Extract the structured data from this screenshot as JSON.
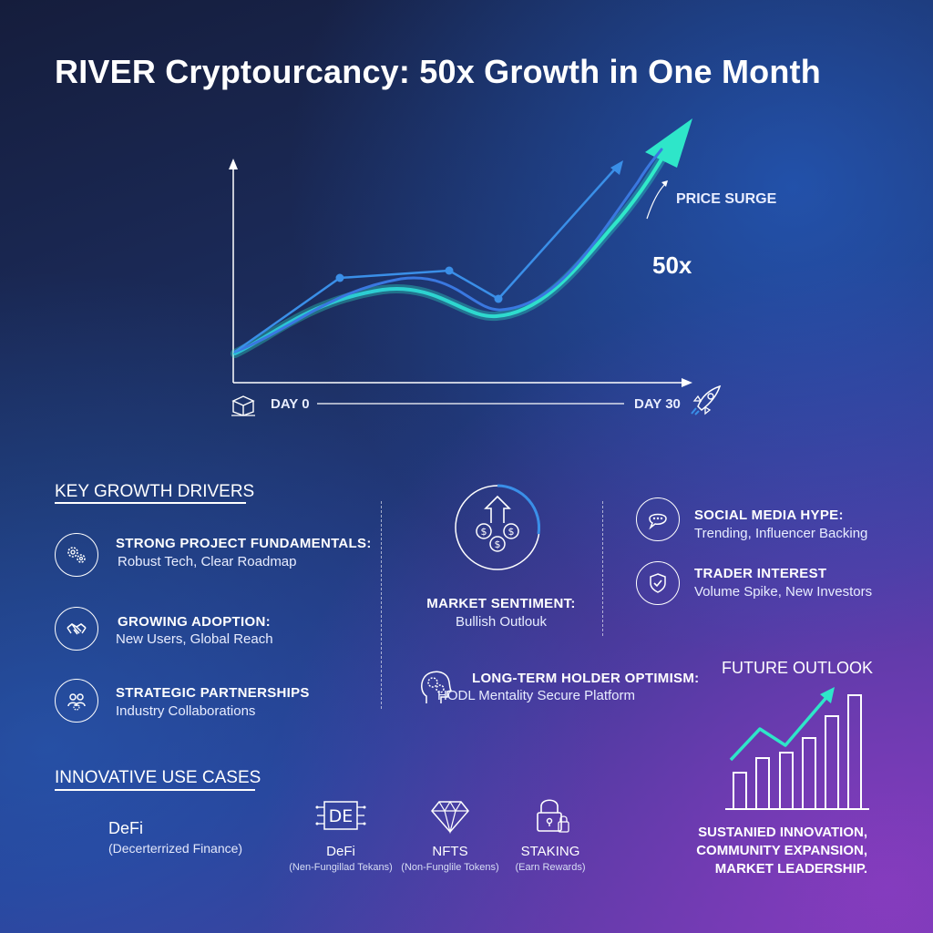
{
  "title": "RIVER Cryptourcancy: 50x Growth in One Month",
  "main_chart": {
    "annotation": "PRICE SURGE",
    "multiplier": "50x",
    "x_start": "DAY 0",
    "x_end": "DAY 30"
  },
  "key_growth": {
    "heading": "KEY GROWTH DRIVERS",
    "items": [
      {
        "title": "STRONG PROJECT FUNDAMENTALS:",
        "desc": "Robust Tech, Clear Roadmap",
        "icon": "gears-icon"
      },
      {
        "title": "GROWING ADOPTION:",
        "desc": "New Users, Global Reach",
        "icon": "handshake-icon"
      },
      {
        "title": "STRATEGIC PARTNERSHIPS",
        "desc": "Industry Collaborations",
        "icon": "partners-icon"
      }
    ]
  },
  "market_sentiment": {
    "title": "MARKET SENTIMENT:",
    "desc": "Bullish Outlouk",
    "icon": "coins-arrow-icon"
  },
  "long_term": {
    "title": "LONG-TERM HOLDER OPTIMISM:",
    "desc": "HODL Mentality Secure Platform",
    "icon": "head-gears-icon"
  },
  "right_drivers": [
    {
      "title": "SOCIAL MEDIA HYPE:",
      "desc": "Trending, Influencer Backing",
      "icon": "chat-bubble-icon"
    },
    {
      "title": "TRADER INTEREST",
      "desc": "Volume Spike, New Investors",
      "icon": "shield-check-icon"
    }
  ],
  "use_cases": {
    "heading": "INNOVATIVE USE CASES",
    "main": {
      "name": "DeFi",
      "sub": "(Decerterrized Finance)"
    },
    "items": [
      {
        "name": "DeFi",
        "sub": "(Nen-Fungillad Tekans)",
        "icon_text": "DE",
        "icon": "circuit-de-icon"
      },
      {
        "name": "NFTS",
        "sub": "(Non-Funglile Tokens)",
        "icon": "diamond-icon"
      },
      {
        "name": "STAKING",
        "sub": "(Earn Rewards)",
        "icon": "padlock-icon"
      }
    ]
  },
  "future": {
    "heading": "FUTURE OUTLOOK",
    "lines": [
      "SUSTANIED INNOVATION,",
      "COMMUNITY EXPANSION,",
      "MARKET LEADERSHIP."
    ]
  },
  "colors": {
    "accent_teal": "#2ee6c9",
    "accent_blue": "#3a8fe8",
    "text": "#ffffff"
  }
}
